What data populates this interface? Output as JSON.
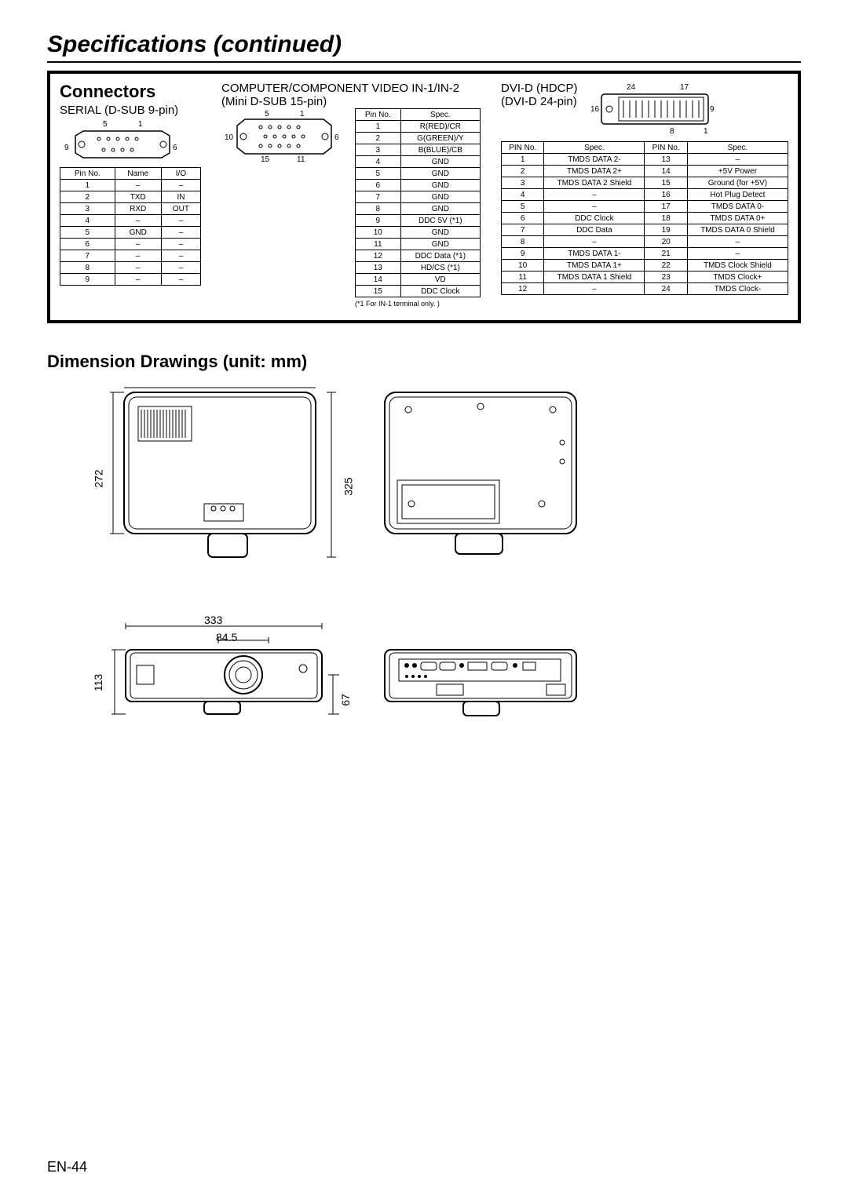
{
  "title": "Specifications (continued)",
  "connectors": {
    "heading": "Connectors",
    "serial": {
      "label": "SERIAL (D-SUB 9-pin)",
      "pins_top": [
        "5",
        "1"
      ],
      "pins_side": [
        "9",
        "6"
      ],
      "headers": [
        "Pin No.",
        "Name",
        "I/O"
      ],
      "rows": [
        [
          "1",
          "–",
          "–"
        ],
        [
          "2",
          "TXD",
          "IN"
        ],
        [
          "3",
          "RXD",
          "OUT"
        ],
        [
          "4",
          "–",
          "–"
        ],
        [
          "5",
          "GND",
          "–"
        ],
        [
          "6",
          "–",
          "–"
        ],
        [
          "7",
          "–",
          "–"
        ],
        [
          "8",
          "–",
          "–"
        ],
        [
          "9",
          "–",
          "–"
        ]
      ]
    },
    "component": {
      "label": "COMPUTER/COMPONENT VIDEO IN-1/IN-2",
      "label2": "(Mini D-SUB 15-pin)",
      "pins_top": [
        "5",
        "1"
      ],
      "pins_side": [
        "10",
        "6"
      ],
      "pins_bot": [
        "15",
        "11"
      ],
      "headers": [
        "Pin No.",
        "Spec."
      ],
      "rows": [
        [
          "1",
          "R(RED)/CR"
        ],
        [
          "2",
          "G(GREEN)/Y"
        ],
        [
          "3",
          "B(BLUE)/CB"
        ],
        [
          "4",
          "GND"
        ],
        [
          "5",
          "GND"
        ],
        [
          "6",
          "GND"
        ],
        [
          "7",
          "GND"
        ],
        [
          "8",
          "GND"
        ],
        [
          "9",
          "DDC 5V (*1)"
        ],
        [
          "10",
          "GND"
        ],
        [
          "11",
          "GND"
        ],
        [
          "12",
          "DDC Data (*1)"
        ],
        [
          "13",
          "HD/CS (*1)"
        ],
        [
          "14",
          "VD"
        ],
        [
          "15",
          "DDC Clock"
        ]
      ],
      "footnote": "(*1 For IN-1 terminal only. )"
    },
    "dvi": {
      "label": "DVI-D (HDCP)",
      "label2": "(DVI-D 24-pin)",
      "pins_top": [
        "24",
        "17"
      ],
      "pins_side": [
        "16",
        "9"
      ],
      "pins_bot": [
        "8",
        "1"
      ],
      "headers": [
        "PIN No.",
        "Spec.",
        "PIN No.",
        "Spec."
      ],
      "rows": [
        [
          "1",
          "TMDS DATA 2-",
          "13",
          "–"
        ],
        [
          "2",
          "TMDS DATA 2+",
          "14",
          "+5V Power"
        ],
        [
          "3",
          "TMDS DATA 2 Shield",
          "15",
          "Ground (for +5V)"
        ],
        [
          "4",
          "–",
          "16",
          "Hot Plug Detect"
        ],
        [
          "5",
          "–",
          "17",
          "TMDS DATA 0-"
        ],
        [
          "6",
          "DDC Clock",
          "18",
          "TMDS DATA 0+"
        ],
        [
          "7",
          "DDC Data",
          "19",
          "TMDS DATA 0 Shield"
        ],
        [
          "8",
          "–",
          "20",
          "–"
        ],
        [
          "9",
          "TMDS DATA 1-",
          "21",
          "–"
        ],
        [
          "10",
          "TMDS DATA 1+",
          "22",
          "TMDS Clock Shield"
        ],
        [
          "11",
          "TMDS DATA 1 Shield",
          "23",
          "TMDS Clock+"
        ],
        [
          "12",
          "–",
          "24",
          "TMDS Clock-"
        ]
      ]
    }
  },
  "dimensions": {
    "heading": "Dimension Drawings (unit: mm)",
    "d272": "272",
    "d325": "325",
    "d333": "333",
    "d84_5": "84.5",
    "d113": "113",
    "d67": "67"
  },
  "page_number": "EN-44",
  "colors": {
    "line": "#000000",
    "bg": "#ffffff"
  }
}
